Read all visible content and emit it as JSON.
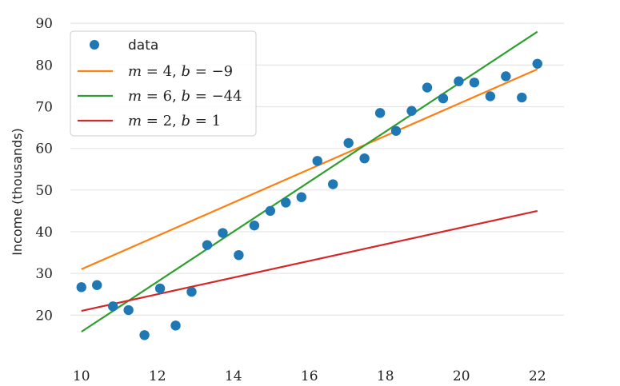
{
  "chart_data": {
    "type": "scatter",
    "title": "",
    "xlabel": "",
    "ylabel": "Income (thousands)",
    "xlim": [
      9.5,
      22.7
    ],
    "ylim": [
      12,
      91
    ],
    "xticks": [
      10,
      12,
      14,
      16,
      18,
      20,
      22
    ],
    "yticks": [
      20,
      30,
      40,
      50,
      60,
      70,
      80,
      90
    ],
    "grid": "horizontal",
    "legend_position": "top-left",
    "scatter": {
      "name": "data",
      "color": "#1f77b4",
      "x": [
        10.0,
        10.41,
        10.83,
        11.24,
        11.66,
        12.07,
        12.48,
        12.9,
        13.31,
        13.72,
        14.14,
        14.55,
        14.97,
        15.38,
        15.79,
        16.21,
        16.62,
        17.03,
        17.45,
        17.86,
        18.28,
        18.69,
        19.1,
        19.52,
        19.93,
        20.34,
        20.76,
        21.17,
        21.59,
        22.0
      ],
      "y": [
        26.7,
        27.2,
        22.1,
        21.2,
        15.2,
        26.4,
        17.5,
        25.6,
        36.8,
        39.7,
        34.4,
        41.5,
        45.0,
        47.0,
        48.3,
        57.0,
        51.4,
        61.3,
        57.6,
        68.5,
        64.2,
        69.0,
        74.6,
        72.0,
        76.1,
        75.8,
        72.5,
        77.3,
        72.2,
        80.3
      ]
    },
    "lines": [
      {
        "label_prefix": "m",
        "m_text": "4",
        "b_text": "−9",
        "m": 4,
        "b": -9,
        "x_range": [
          10,
          22
        ],
        "color": "#ff7f0e"
      },
      {
        "label_prefix": "m",
        "m_text": "6",
        "b_text": "−44",
        "m": 6,
        "b": -44,
        "x_range": [
          10,
          22
        ],
        "color": "#2ca02c"
      },
      {
        "label_prefix": "m",
        "m_text": "2",
        "b_text": "1",
        "m": 2,
        "b": 1,
        "x_range": [
          10,
          22
        ],
        "color": "#d62728"
      }
    ],
    "legend": {
      "data_label": "data"
    }
  }
}
